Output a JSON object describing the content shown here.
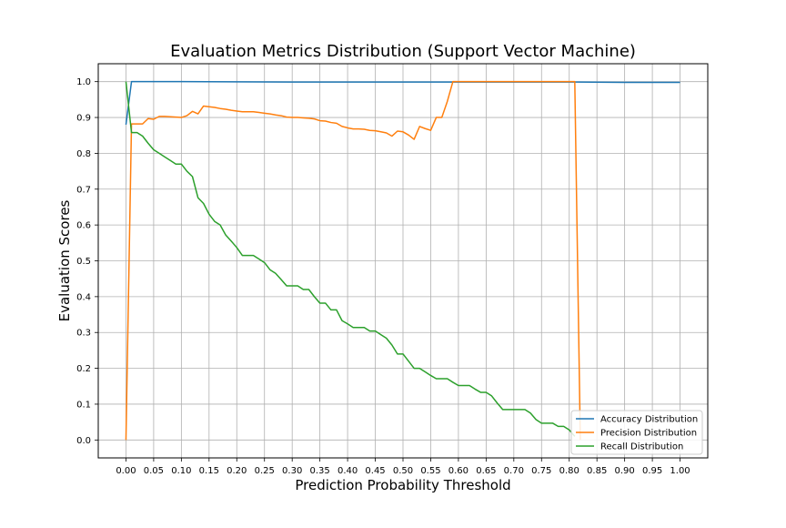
{
  "chart_data": {
    "type": "line",
    "title": "Evaluation Metrics Distribution (Support Vector Machine)",
    "xlabel": "Prediction Probability Threshold",
    "ylabel": "Evaluation Scores",
    "xlim": [
      -0.05,
      1.05
    ],
    "ylim": [
      -0.05,
      1.05
    ],
    "xticks": [
      0.0,
      0.05,
      0.1,
      0.15,
      0.2,
      0.25,
      0.3,
      0.35,
      0.4,
      0.45,
      0.5,
      0.55,
      0.6,
      0.65,
      0.7,
      0.75,
      0.8,
      0.85,
      0.9,
      0.95,
      1.0
    ],
    "xtick_labels": [
      "0.00",
      "0.05",
      "0.10",
      "0.15",
      "0.20",
      "0.25",
      "0.30",
      "0.35",
      "0.40",
      "0.45",
      "0.50",
      "0.55",
      "0.60",
      "0.65",
      "0.70",
      "0.75",
      "0.80",
      "0.85",
      "0.90",
      "0.95",
      "1.00"
    ],
    "yticks": [
      0.0,
      0.1,
      0.2,
      0.3,
      0.4,
      0.5,
      0.6,
      0.7,
      0.8,
      0.9,
      1.0
    ],
    "ytick_labels": [
      "0.0",
      "0.1",
      "0.2",
      "0.3",
      "0.4",
      "0.5",
      "0.6",
      "0.7",
      "0.8",
      "0.9",
      "1.0"
    ],
    "grid": true,
    "legend_position": "lower-right",
    "series": [
      {
        "name": "Accuracy Distribution",
        "color": "#1f77b4",
        "x": [
          0.0,
          0.01,
          0.1,
          0.3,
          0.5,
          0.7,
          0.81,
          0.9,
          1.0
        ],
        "y": [
          0.88,
          1.0,
          1.0,
          0.999,
          0.999,
          0.999,
          0.999,
          0.998,
          0.998
        ]
      },
      {
        "name": "Precision Distribution",
        "color": "#ff7f0e",
        "x": [
          0.0,
          0.01,
          0.02,
          0.03,
          0.04,
          0.05,
          0.06,
          0.07,
          0.08,
          0.09,
          0.1,
          0.11,
          0.12,
          0.13,
          0.14,
          0.15,
          0.16,
          0.17,
          0.18,
          0.19,
          0.2,
          0.21,
          0.22,
          0.23,
          0.24,
          0.25,
          0.26,
          0.27,
          0.28,
          0.29,
          0.3,
          0.31,
          0.32,
          0.33,
          0.34,
          0.35,
          0.36,
          0.37,
          0.38,
          0.39,
          0.4,
          0.41,
          0.42,
          0.43,
          0.44,
          0.45,
          0.46,
          0.47,
          0.48,
          0.49,
          0.5,
          0.51,
          0.52,
          0.53,
          0.54,
          0.55,
          0.56,
          0.57,
          0.58,
          0.59,
          0.6,
          0.7,
          0.8,
          0.81,
          0.82
        ],
        "y": [
          0.0,
          0.882,
          0.882,
          0.882,
          0.897,
          0.895,
          0.903,
          0.903,
          0.902,
          0.901,
          0.9,
          0.905,
          0.917,
          0.91,
          0.932,
          0.93,
          0.928,
          0.925,
          0.923,
          0.92,
          0.918,
          0.916,
          0.916,
          0.916,
          0.914,
          0.912,
          0.91,
          0.907,
          0.905,
          0.901,
          0.9,
          0.9,
          0.899,
          0.898,
          0.896,
          0.891,
          0.89,
          0.886,
          0.884,
          0.875,
          0.871,
          0.868,
          0.868,
          0.867,
          0.864,
          0.863,
          0.86,
          0.857,
          0.848,
          0.862,
          0.86,
          0.851,
          0.839,
          0.875,
          0.869,
          0.864,
          0.9,
          0.9,
          0.945,
          1.0,
          1.0,
          1.0,
          1.0,
          1.0,
          0.0
        ]
      },
      {
        "name": "Recall Distribution",
        "color": "#2ca02c",
        "x": [
          0.0,
          0.01,
          0.02,
          0.03,
          0.04,
          0.05,
          0.06,
          0.07,
          0.08,
          0.09,
          0.1,
          0.11,
          0.12,
          0.13,
          0.14,
          0.15,
          0.16,
          0.17,
          0.18,
          0.19,
          0.2,
          0.21,
          0.22,
          0.23,
          0.24,
          0.25,
          0.26,
          0.27,
          0.28,
          0.29,
          0.3,
          0.31,
          0.32,
          0.33,
          0.34,
          0.35,
          0.36,
          0.37,
          0.38,
          0.39,
          0.4,
          0.41,
          0.42,
          0.43,
          0.44,
          0.45,
          0.46,
          0.47,
          0.48,
          0.49,
          0.5,
          0.51,
          0.52,
          0.53,
          0.54,
          0.55,
          0.56,
          0.57,
          0.58,
          0.59,
          0.6,
          0.61,
          0.62,
          0.63,
          0.64,
          0.65,
          0.66,
          0.67,
          0.68,
          0.69,
          0.7,
          0.71,
          0.72,
          0.73,
          0.74,
          0.75,
          0.76,
          0.77,
          0.78,
          0.79,
          0.8,
          0.81
        ],
        "y": [
          1.0,
          0.858,
          0.858,
          0.848,
          0.828,
          0.81,
          0.8,
          0.79,
          0.78,
          0.77,
          0.77,
          0.75,
          0.735,
          0.676,
          0.66,
          0.63,
          0.61,
          0.6,
          0.572,
          0.555,
          0.537,
          0.515,
          0.515,
          0.515,
          0.505,
          0.495,
          0.475,
          0.465,
          0.448,
          0.43,
          0.43,
          0.43,
          0.42,
          0.42,
          0.4,
          0.382,
          0.382,
          0.363,
          0.363,
          0.333,
          0.324,
          0.314,
          0.314,
          0.314,
          0.304,
          0.304,
          0.294,
          0.284,
          0.265,
          0.24,
          0.24,
          0.22,
          0.2,
          0.2,
          0.19,
          0.18,
          0.171,
          0.171,
          0.171,
          0.161,
          0.152,
          0.152,
          0.152,
          0.142,
          0.133,
          0.133,
          0.123,
          0.103,
          0.085,
          0.085,
          0.085,
          0.085,
          0.085,
          0.075,
          0.057,
          0.047,
          0.047,
          0.047,
          0.038,
          0.038,
          0.028,
          0.01
        ]
      }
    ]
  }
}
